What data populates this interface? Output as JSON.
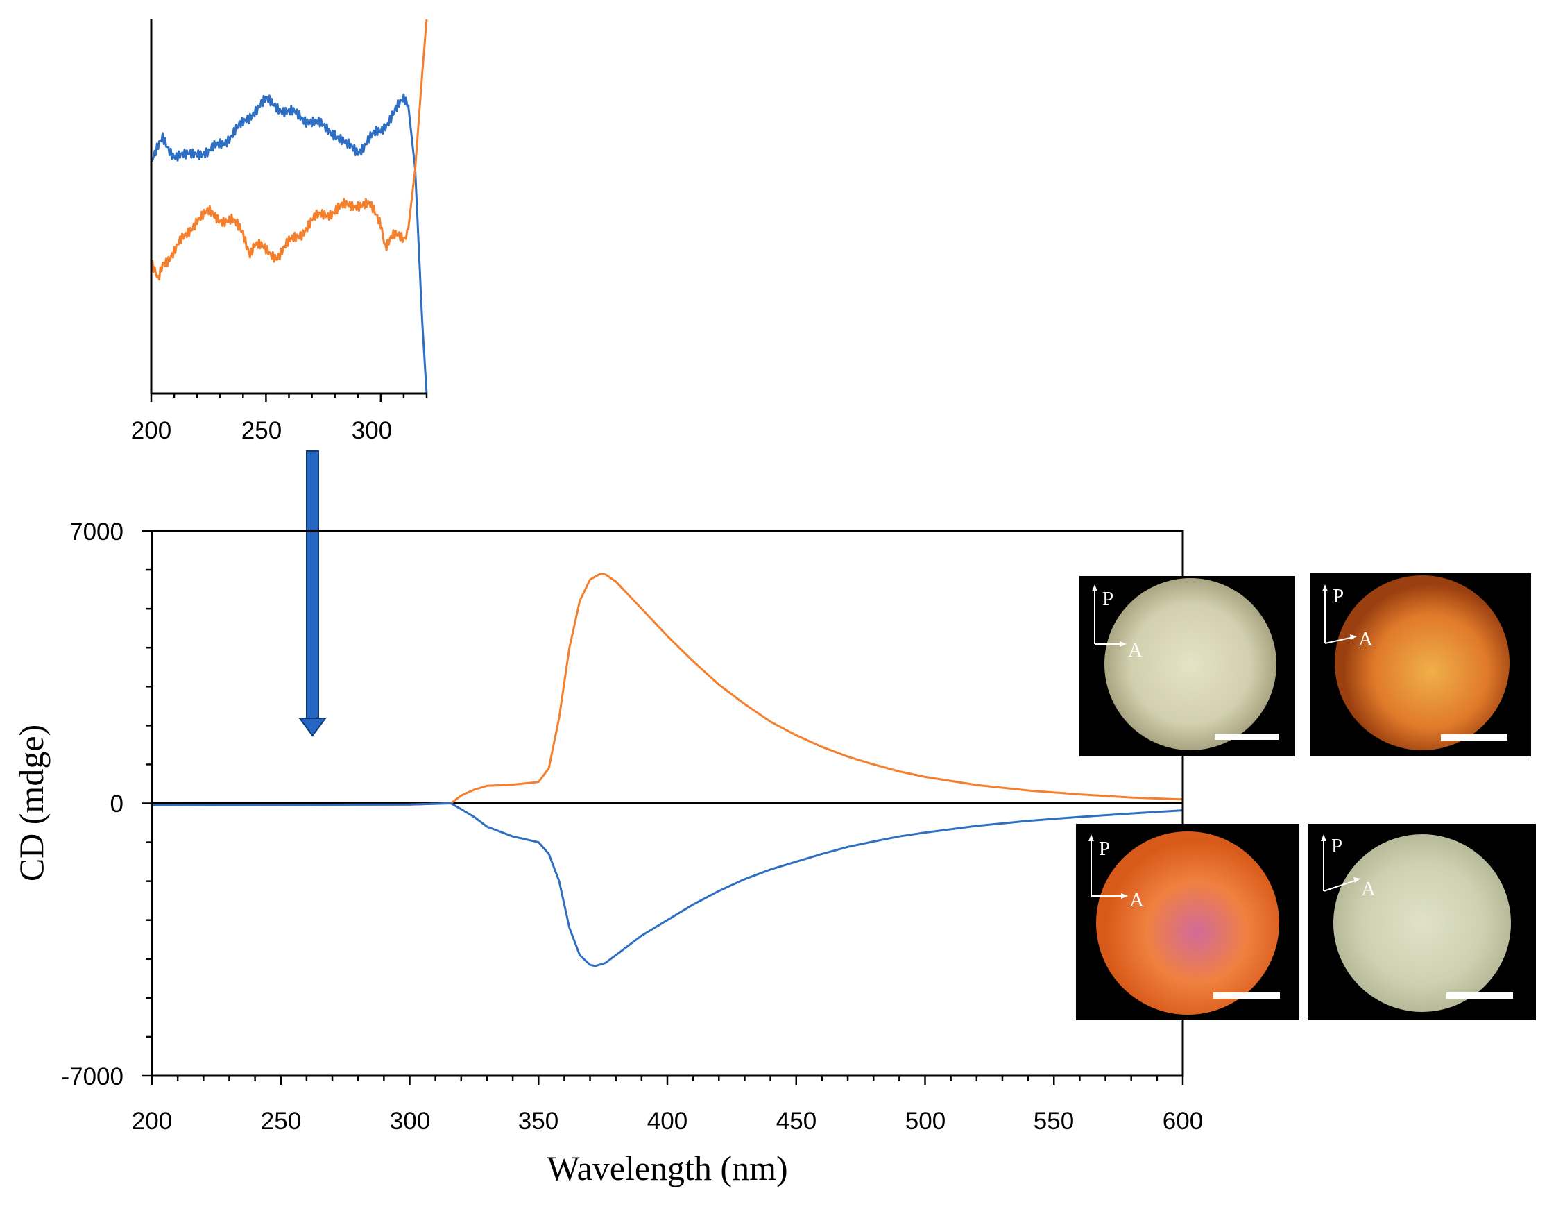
{
  "colors": {
    "blue": "#2e6fc4",
    "orange": "#f47f2c",
    "axis": "#000000",
    "arrow_fill": "#2566c2",
    "arrow_stroke": "#0b3a7a"
  },
  "chart_data": [
    {
      "id": "main",
      "type": "line",
      "xlabel": "Wavelength (nm)",
      "ylabel": "CD (mdge)",
      "xlim": [
        200,
        600
      ],
      "ylim": [
        -7000,
        7000
      ],
      "xticks": [
        "200",
        "250",
        "300",
        "350",
        "400",
        "450",
        "500",
        "550",
        "600"
      ],
      "yticks": [
        "7000",
        "0",
        "-7000"
      ],
      "grid": false,
      "series": [
        {
          "color": "orange",
          "x": [
            200,
            250,
            300,
            316,
            320,
            325,
            330,
            340,
            350,
            354,
            358,
            362,
            366,
            370,
            374,
            376,
            380,
            385,
            390,
            400,
            410,
            420,
            430,
            440,
            450,
            460,
            470,
            480,
            490,
            500,
            520,
            540,
            560,
            580,
            600
          ],
          "y": [
            -50,
            -40,
            -30,
            0,
            200,
            350,
            450,
            480,
            550,
            900,
            2200,
            4000,
            5200,
            5750,
            5900,
            5880,
            5700,
            5350,
            5000,
            4300,
            3650,
            3050,
            2550,
            2100,
            1750,
            1450,
            1200,
            1000,
            820,
            680,
            470,
            330,
            230,
            150,
            100
          ]
        },
        {
          "color": "blue",
          "x": [
            200,
            250,
            300,
            316,
            320,
            325,
            330,
            340,
            350,
            354,
            358,
            362,
            366,
            370,
            372,
            376,
            380,
            385,
            390,
            400,
            410,
            420,
            430,
            440,
            450,
            460,
            470,
            480,
            490,
            500,
            520,
            540,
            560,
            580,
            600
          ],
          "y": [
            -50,
            -40,
            -30,
            0,
            -150,
            -350,
            -600,
            -850,
            -1000,
            -1300,
            -2000,
            -3200,
            -3900,
            -4150,
            -4180,
            -4100,
            -3900,
            -3650,
            -3400,
            -3000,
            -2600,
            -2250,
            -1950,
            -1700,
            -1500,
            -1300,
            -1120,
            -980,
            -850,
            -750,
            -580,
            -450,
            -350,
            -260,
            -180
          ]
        }
      ]
    },
    {
      "id": "inset",
      "type": "line",
      "xlim": [
        200,
        320
      ],
      "xticks": [
        "200",
        "250",
        "300"
      ],
      "ylim": [
        0,
        1
      ],
      "grid": false,
      "series": [
        {
          "color": "blue",
          "x": [
            200,
            202,
            205,
            210,
            215,
            220,
            225,
            230,
            235,
            240,
            245,
            250,
            255,
            260,
            265,
            270,
            275,
            280,
            285,
            290,
            295,
            300,
            305,
            310,
            312,
            315,
            318,
            320
          ],
          "y": [
            0.62,
            0.64,
            0.68,
            0.64,
            0.63,
            0.65,
            0.64,
            0.67,
            0.69,
            0.72,
            0.76,
            0.78,
            0.77,
            0.75,
            0.74,
            0.73,
            0.71,
            0.7,
            0.66,
            0.65,
            0.68,
            0.7,
            0.75,
            0.78,
            0.77,
            0.6,
            0.2,
            0.0
          ]
        },
        {
          "color": "orange",
          "x": [
            200,
            203,
            205,
            210,
            215,
            220,
            225,
            230,
            235,
            240,
            243,
            245,
            250,
            255,
            260,
            265,
            270,
            275,
            280,
            285,
            290,
            295,
            300,
            302,
            305,
            310,
            312,
            315,
            318,
            320
          ],
          "y": [
            0.34,
            0.3,
            0.35,
            0.38,
            0.42,
            0.47,
            0.48,
            0.47,
            0.46,
            0.43,
            0.38,
            0.4,
            0.38,
            0.37,
            0.4,
            0.43,
            0.46,
            0.48,
            0.49,
            0.5,
            0.51,
            0.5,
            0.46,
            0.4,
            0.42,
            0.41,
            0.44,
            0.6,
            0.85,
            1.0
          ]
        }
      ]
    }
  ],
  "photos": [
    {
      "name": "photo-top-left",
      "colors": [
        "#e6e3c6",
        "#d2cfae",
        "#a9a583"
      ],
      "p_label": "P",
      "a_label": "A"
    },
    {
      "name": "photo-top-right",
      "colors": [
        "#f0b04a",
        "#e07a2a",
        "#9a3f10"
      ],
      "p_label": "P",
      "a_label": "A"
    },
    {
      "name": "photo-bottom-left",
      "colors": [
        "#d16a9a",
        "#f08140",
        "#d85a1a"
      ],
      "p_label": "P",
      "a_label": "A"
    },
    {
      "name": "photo-bottom-right",
      "colors": [
        "#dfe2c8",
        "#cdd0b0",
        "#b7ba98"
      ],
      "p_label": "P",
      "a_label": "A"
    }
  ]
}
